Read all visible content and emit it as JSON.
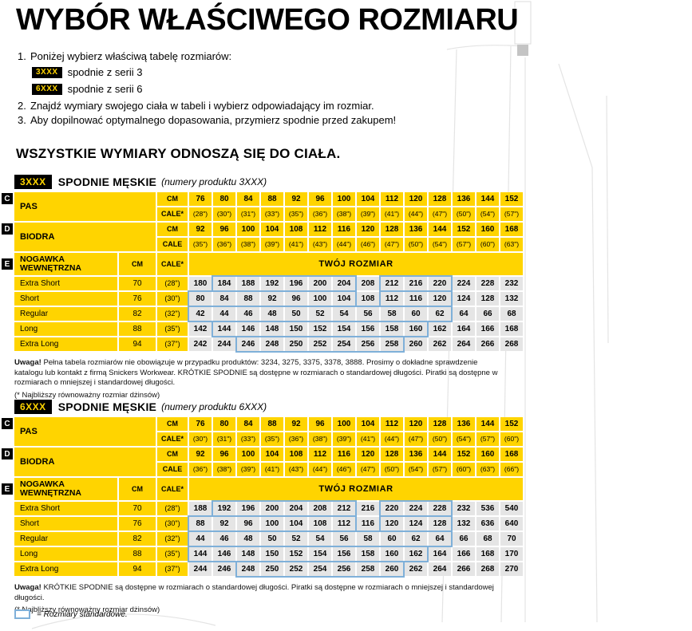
{
  "page": {
    "title": "WYBÓR WŁAŚCIWEGO ROZMIARU",
    "subtitle": "WSZYSTKIE WYMIARY ODNOSZĄ SIĘ DO CIAŁA.",
    "steps": [
      {
        "num": "1.",
        "text": "Poniżej wybierz właściwą tabelę rozmiarów:"
      },
      {
        "num": "2.",
        "text": "Znajdź wymiary swojego ciała w tabeli i wybierz odpowiadający im rozmiar."
      },
      {
        "num": "3.",
        "text": "Aby dopilnować optymalnego dopasowania, przymierz spodnie przed zakupem!"
      }
    ],
    "series_options": [
      {
        "badge": "3XXX",
        "label": "spodnie z serii 3"
      },
      {
        "badge": "6XXX",
        "label": "spodnie z serii 6"
      }
    ],
    "legend": "= Rozmiary standardowe."
  },
  "colors": {
    "yellow": "#ffd400",
    "cell_gray": "#e5e5e5",
    "standard_blue": "#7fb0d9",
    "black": "#000000"
  },
  "tables": [
    {
      "badge": "3XXX",
      "title": "SPODNIE MĘSKIE",
      "subtitle": "(numery produktu 3XXX)",
      "markers": [
        "C",
        "D",
        "E"
      ],
      "unit_cm": "CM",
      "unit_cale_star": "CALE*",
      "unit_cale": "CALE",
      "your_size": "TWÓJ ROZMIAR",
      "pas": {
        "label": "PAS",
        "cm": [
          "76",
          "80",
          "84",
          "88",
          "92",
          "96",
          "100",
          "104",
          "112",
          "120",
          "128",
          "136",
          "144",
          "152"
        ],
        "cale": [
          "(28\")",
          "(30\")",
          "(31\")",
          "(33\")",
          "(35\")",
          "(36\")",
          "(38\")",
          "(39\")",
          "(41\")",
          "(44\")",
          "(47\")",
          "(50\")",
          "(54\")",
          "(57\")"
        ]
      },
      "biodra": {
        "label": "BIODRA",
        "cm": [
          "92",
          "96",
          "100",
          "104",
          "108",
          "112",
          "116",
          "120",
          "128",
          "136",
          "144",
          "152",
          "160",
          "168"
        ],
        "cale": [
          "(35\")",
          "(36\")",
          "(38\")",
          "(39\")",
          "(41\")",
          "(43\")",
          "(44\")",
          "(46\")",
          "(47\")",
          "(50\")",
          "(54\")",
          "(57\")",
          "(60\")",
          "(63\")"
        ]
      },
      "nogawka": {
        "label": "NOGAWKA WEWNĘTRZNA",
        "rows": [
          {
            "name": "Extra Short",
            "cm": "70",
            "cale": "(28\")",
            "values": [
              "180",
              "184",
              "188",
              "192",
              "196",
              "200",
              "204",
              "208",
              "212",
              "216",
              "220",
              "224",
              "228",
              "232"
            ],
            "std": [
              [
                1,
                6
              ],
              [
                8,
                10
              ]
            ]
          },
          {
            "name": "Short",
            "cm": "76",
            "cale": "(30\")",
            "values": [
              "80",
              "84",
              "88",
              "92",
              "96",
              "100",
              "104",
              "108",
              "112",
              "116",
              "120",
              "124",
              "128",
              "132"
            ],
            "std": [
              [
                0,
                6
              ],
              [
                8,
                10
              ]
            ]
          },
          {
            "name": "Regular",
            "cm": "82",
            "cale": "(32\")",
            "values": [
              "42",
              "44",
              "46",
              "48",
              "50",
              "52",
              "54",
              "56",
              "58",
              "60",
              "62",
              "64",
              "66",
              "68"
            ],
            "std": [
              [
                0,
                10
              ]
            ]
          },
          {
            "name": "Long",
            "cm": "88",
            "cale": "(35\")",
            "values": [
              "142",
              "144",
              "146",
              "148",
              "150",
              "152",
              "154",
              "156",
              "158",
              "160",
              "162",
              "164",
              "166",
              "168"
            ],
            "std": [
              [
                1,
                9
              ]
            ]
          },
          {
            "name": "Extra Long",
            "cm": "94",
            "cale": "(37\")",
            "values": [
              "242",
              "244",
              "246",
              "248",
              "250",
              "252",
              "254",
              "256",
              "258",
              "260",
              "262",
              "264",
              "266",
              "268"
            ],
            "std": [
              [
                2,
                8
              ]
            ]
          }
        ]
      },
      "note_title": "Uwaga!",
      "note": "Pełna tabela rozmiarów nie obowiązuje w przypadku produktów: 3234, 3275, 3375, 3378, 3888. Prosimy o dokładne sprawdzenie katalogu lub kontakt z firmą Snickers Workwear. KRÓTKIE SPODNIE są dostępne w rozmiarach o standardowej długości. Piratki są dostępne w rozmiarach o mniejszej i standardowej długości.",
      "note_footnote": "(* Najbliższy równoważny rozmiar dżinsów)"
    },
    {
      "badge": "6XXX",
      "title": "SPODNIE MĘSKIE",
      "subtitle": "(numery produktu 6XXX)",
      "markers": [
        "C",
        "D",
        "E"
      ],
      "unit_cm": "CM",
      "unit_cale_star": "CALE*",
      "unit_cale": "CALE",
      "your_size": "TWÓJ ROZMIAR",
      "pas": {
        "label": "PAS",
        "cm": [
          "76",
          "80",
          "84",
          "88",
          "92",
          "96",
          "100",
          "104",
          "112",
          "120",
          "128",
          "136",
          "144",
          "152"
        ],
        "cale": [
          "(30\")",
          "(31\")",
          "(33\")",
          "(35\")",
          "(36\")",
          "(38\")",
          "(39\")",
          "(41\")",
          "(44\")",
          "(47\")",
          "(50\")",
          "(54\")",
          "(57\")",
          "(60\")"
        ]
      },
      "biodra": {
        "label": "BIODRA",
        "cm": [
          "92",
          "96",
          "100",
          "104",
          "108",
          "112",
          "116",
          "120",
          "128",
          "136",
          "144",
          "152",
          "160",
          "168"
        ],
        "cale": [
          "(36\")",
          "(38\")",
          "(39\")",
          "(41\")",
          "(43\")",
          "(44\")",
          "(46\")",
          "(47\")",
          "(50\")",
          "(54\")",
          "(57\")",
          "(60\")",
          "(63\")",
          "(66\")"
        ]
      },
      "nogawka": {
        "label": "NOGAWKA WEWNĘTRZNA",
        "rows": [
          {
            "name": "Extra Short",
            "cm": "70",
            "cale": "(28\")",
            "values": [
              "188",
              "192",
              "196",
              "200",
              "204",
              "208",
              "212",
              "216",
              "220",
              "224",
              "228",
              "232",
              "536",
              "540"
            ],
            "std": [
              [
                1,
                6
              ],
              [
                8,
                10
              ]
            ]
          },
          {
            "name": "Short",
            "cm": "76",
            "cale": "(30\")",
            "values": [
              "88",
              "92",
              "96",
              "100",
              "104",
              "108",
              "112",
              "116",
              "120",
              "124",
              "128",
              "132",
              "636",
              "640"
            ],
            "std": [
              [
                0,
                6
              ],
              [
                8,
                10
              ]
            ]
          },
          {
            "name": "Regular",
            "cm": "82",
            "cale": "(32\")",
            "values": [
              "44",
              "46",
              "48",
              "50",
              "52",
              "54",
              "56",
              "58",
              "60",
              "62",
              "64",
              "66",
              "68",
              "70"
            ],
            "std": [
              [
                0,
                10
              ]
            ]
          },
          {
            "name": "Long",
            "cm": "88",
            "cale": "(35\")",
            "values": [
              "144",
              "146",
              "148",
              "150",
              "152",
              "154",
              "156",
              "158",
              "160",
              "162",
              "164",
              "166",
              "168",
              "170"
            ],
            "std": [
              [
                0,
                9
              ]
            ]
          },
          {
            "name": "Extra Long",
            "cm": "94",
            "cale": "(37\")",
            "values": [
              "244",
              "246",
              "248",
              "250",
              "252",
              "254",
              "256",
              "258",
              "260",
              "262",
              "264",
              "266",
              "268",
              "270"
            ],
            "std": [
              [
                2,
                8
              ]
            ]
          }
        ]
      },
      "note_title": "Uwaga!",
      "note": "KRÓTKIE SPODNIE są dostępne w rozmiarach o standardowej długości. Piratki są dostępne w rozmiarach o mniejszej i standardowej długości.",
      "note_footnote": "(* Najbliższy równoważny rozmiar dżinsów)"
    }
  ]
}
